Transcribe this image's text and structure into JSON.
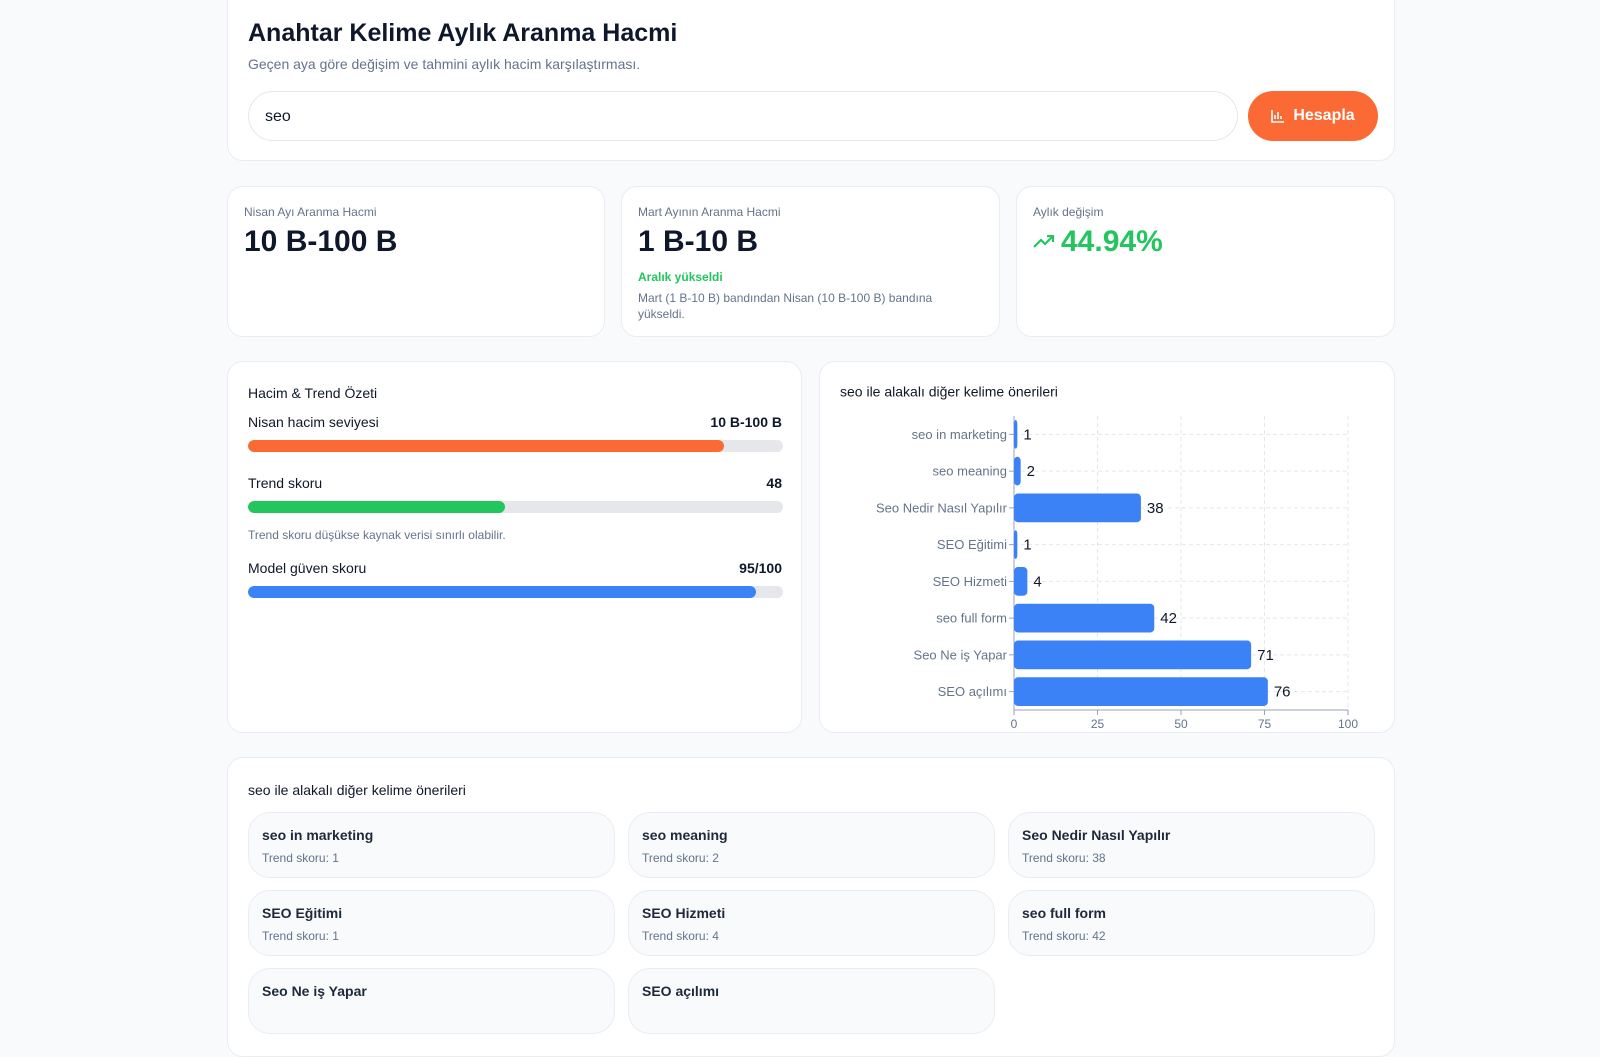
{
  "header": {
    "title": "Anahtar Kelime Aylık Aranma Hacmi",
    "subtitle": "Geçen aya göre değişim ve tahmini aylık hacim karşılaştırması."
  },
  "search": {
    "value": "seo",
    "button": "Hesapla"
  },
  "stats": [
    {
      "label": "Nisan Ayı Aranma Hacmi",
      "value": "10 B-100 B"
    },
    {
      "label": "Mart Ayının Aranma Hacmi",
      "value": "1 B-10 B",
      "status": "Aralık yükseldi",
      "note": "Mart (1 B-10 B) bandından Nisan (10 B-100 B) bandına yükseldi."
    },
    {
      "label": "Aylık değişim",
      "value": "44.94%"
    }
  ],
  "summary": {
    "title": "Hacim & Trend Özeti",
    "max": 100,
    "items": [
      {
        "label": "Nisan hacim seviyesi",
        "text": "10 B-100 B",
        "value": 89,
        "color": "#fb6a35"
      },
      {
        "label": "Trend skoru",
        "value": 48,
        "color": "#22c55e",
        "note": "Trend skoru düşükse kaynak verisi sınırlı olabilir."
      },
      {
        "label": "Model güven skoru",
        "text": "95/100",
        "value": 95,
        "color": "#3b82f6"
      }
    ]
  },
  "chart": {
    "type": "bar",
    "orientation": "horizontal",
    "title": "seo ile alakalı diğer kelime önerileri",
    "categories": [
      "seo in marketing",
      "seo meaning",
      "Seo Nedir Nasıl Yapılır",
      "SEO Eğitimi",
      "SEO Hizmeti",
      "seo full form",
      "Seo Ne iş Yapar",
      "SEO açılımı"
    ],
    "values": [
      1,
      2,
      38,
      1,
      4,
      42,
      71,
      76
    ],
    "color": "#3b82f6",
    "xlim": [
      0,
      100
    ],
    "xticks": [
      0,
      25,
      50,
      75,
      100
    ],
    "grid": true
  },
  "suggestions": {
    "title": "seo ile alakalı diğer kelime önerileri",
    "items": [
      {
        "name": "seo in marketing",
        "detail": "Trend skoru: 1"
      },
      {
        "name": "seo meaning",
        "detail": "Trend skoru: 2"
      },
      {
        "name": "Seo Nedir Nasıl Yapılır",
        "detail": "Trend skoru: 38"
      },
      {
        "name": "SEO Eğitimi",
        "detail": "Trend skoru: 1"
      },
      {
        "name": "SEO Hizmeti",
        "detail": "Trend skoru: 4"
      },
      {
        "name": "seo full form",
        "detail": "Trend skoru: 42"
      },
      {
        "name": "Seo Ne iş Yapar"
      },
      {
        "name": "SEO açılımı"
      }
    ]
  }
}
